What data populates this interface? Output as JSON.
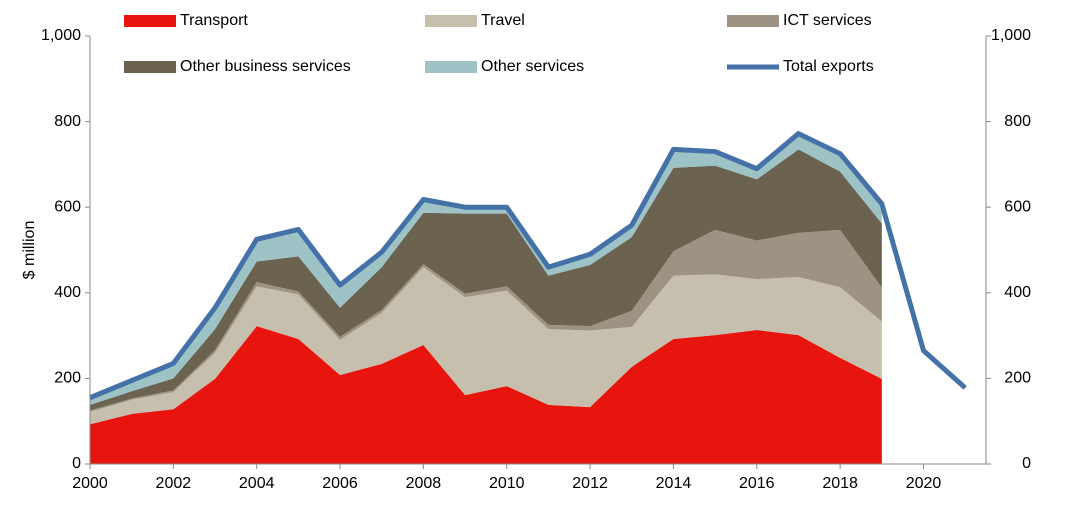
{
  "chart_data": {
    "type": "stacked_area_line",
    "y_label": "$ million",
    "x": [
      2000,
      2001,
      2002,
      2003,
      2004,
      2005,
      2006,
      2007,
      2008,
      2009,
      2010,
      2011,
      2012,
      2013,
      2014,
      2015,
      2016,
      2017,
      2018,
      2019,
      2020,
      2021
    ],
    "xlim": [
      2000,
      2021.5
    ],
    "xticks": [
      2000,
      2002,
      2004,
      2006,
      2008,
      2010,
      2012,
      2014,
      2016,
      2018,
      2020
    ],
    "ylim": [
      0,
      1000
    ],
    "yticks": [
      0,
      200,
      400,
      600,
      800,
      {
        "value": 1000,
        "label": "1,000"
      }
    ],
    "y2lim": [
      0,
      1000
    ],
    "y2ticks": [
      0,
      200,
      400,
      600,
      800,
      {
        "value": 1000,
        "label": "1,000"
      }
    ],
    "series": [
      {
        "name": "Transport",
        "color": "#e8150e",
        "kind": "area",
        "values": [
          93,
          117,
          128,
          199,
          322,
          292,
          208,
          234,
          278,
          161,
          182,
          138,
          133,
          227,
          292,
          301,
          313,
          301,
          248,
          199,
          null,
          null
        ]
      },
      {
        "name": "Travel",
        "color": "#c6bfad",
        "kind": "area",
        "values": [
          29,
          33,
          40,
          61,
          93,
          104,
          82,
          119,
          182,
          229,
          223,
          177,
          179,
          93,
          148,
          142,
          119,
          136,
          165,
          134,
          null,
          null
        ]
      },
      {
        "name": "ICT services",
        "color": "#9e9383",
        "kind": "area",
        "values": [
          3,
          3,
          4,
          6,
          10,
          7,
          7,
          7,
          7,
          8,
          10,
          10,
          10,
          38,
          57,
          104,
          90,
          103,
          134,
          79,
          null,
          null
        ]
      },
      {
        "name": "Other business services",
        "color": "#6b6250",
        "kind": "area",
        "values": [
          13,
          17,
          28,
          49,
          48,
          82,
          68,
          100,
          120,
          187,
          170,
          115,
          143,
          172,
          195,
          150,
          143,
          195,
          136,
          150,
          null,
          null
        ]
      },
      {
        "name": "Other services",
        "color": "#9dc3c6",
        "kind": "area",
        "values": [
          17,
          25,
          35,
          50,
          52,
          63,
          53,
          35,
          31,
          15,
          15,
          20,
          25,
          28,
          43,
          33,
          25,
          37,
          42,
          46,
          null,
          null
        ]
      },
      {
        "name": "Total exports",
        "color": "#4472a8",
        "kind": "line",
        "values": [
          155,
          195,
          235,
          365,
          525,
          548,
          418,
          495,
          618,
          600,
          600,
          460,
          490,
          558,
          735,
          730,
          690,
          772,
          725,
          608,
          265,
          178
        ]
      }
    ]
  }
}
